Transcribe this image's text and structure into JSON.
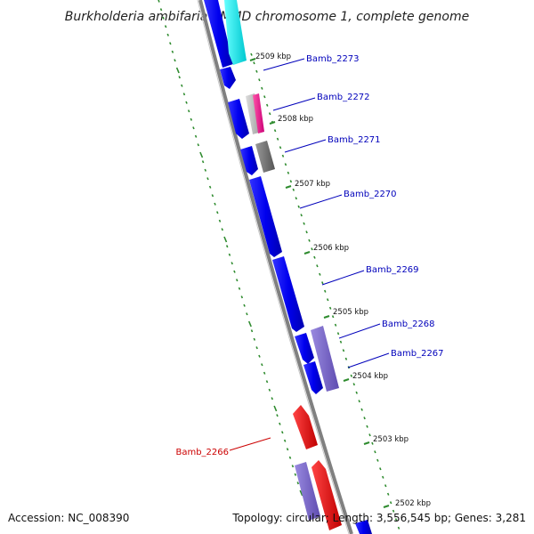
{
  "title": "Burkholderia ambifaria AMMD chromosome 1, complete genome",
  "footer": {
    "accession": "Accession: NC_008390",
    "topology": "Topology: circular; Length: 3,556,545 bp; Genes: 3,281"
  },
  "colors": {
    "backbone": "#808080",
    "tick": "#2e8b2e",
    "label_blue": "#0000bb",
    "label_red": "#cc0000",
    "blue": "#0000ee",
    "cyan": "#00e5ee",
    "magenta": "#ee1493",
    "grey": "#777777",
    "lightgrey": "#bbbbbb",
    "purple": "#7b68cc",
    "red": "#ee0000"
  },
  "ticks": [
    {
      "label": "2509 kbp"
    },
    {
      "label": "2508 kbp"
    },
    {
      "label": "2507 kbp"
    },
    {
      "label": "2506 kbp"
    },
    {
      "label": "2505 kbp"
    },
    {
      "label": "2504 kbp"
    },
    {
      "label": "2503 kbp"
    },
    {
      "label": "2502 kbp"
    }
  ],
  "genes": [
    {
      "name": "Bamb_2273",
      "color": "label_blue"
    },
    {
      "name": "Bamb_2272",
      "color": "label_blue"
    },
    {
      "name": "Bamb_2271",
      "color": "label_blue"
    },
    {
      "name": "Bamb_2270",
      "color": "label_blue"
    },
    {
      "name": "Bamb_2269",
      "color": "label_blue"
    },
    {
      "name": "Bamb_2268",
      "color": "label_blue"
    },
    {
      "name": "Bamb_2267",
      "color": "label_blue"
    },
    {
      "name": "Bamb_2266",
      "color": "label_red"
    }
  ]
}
